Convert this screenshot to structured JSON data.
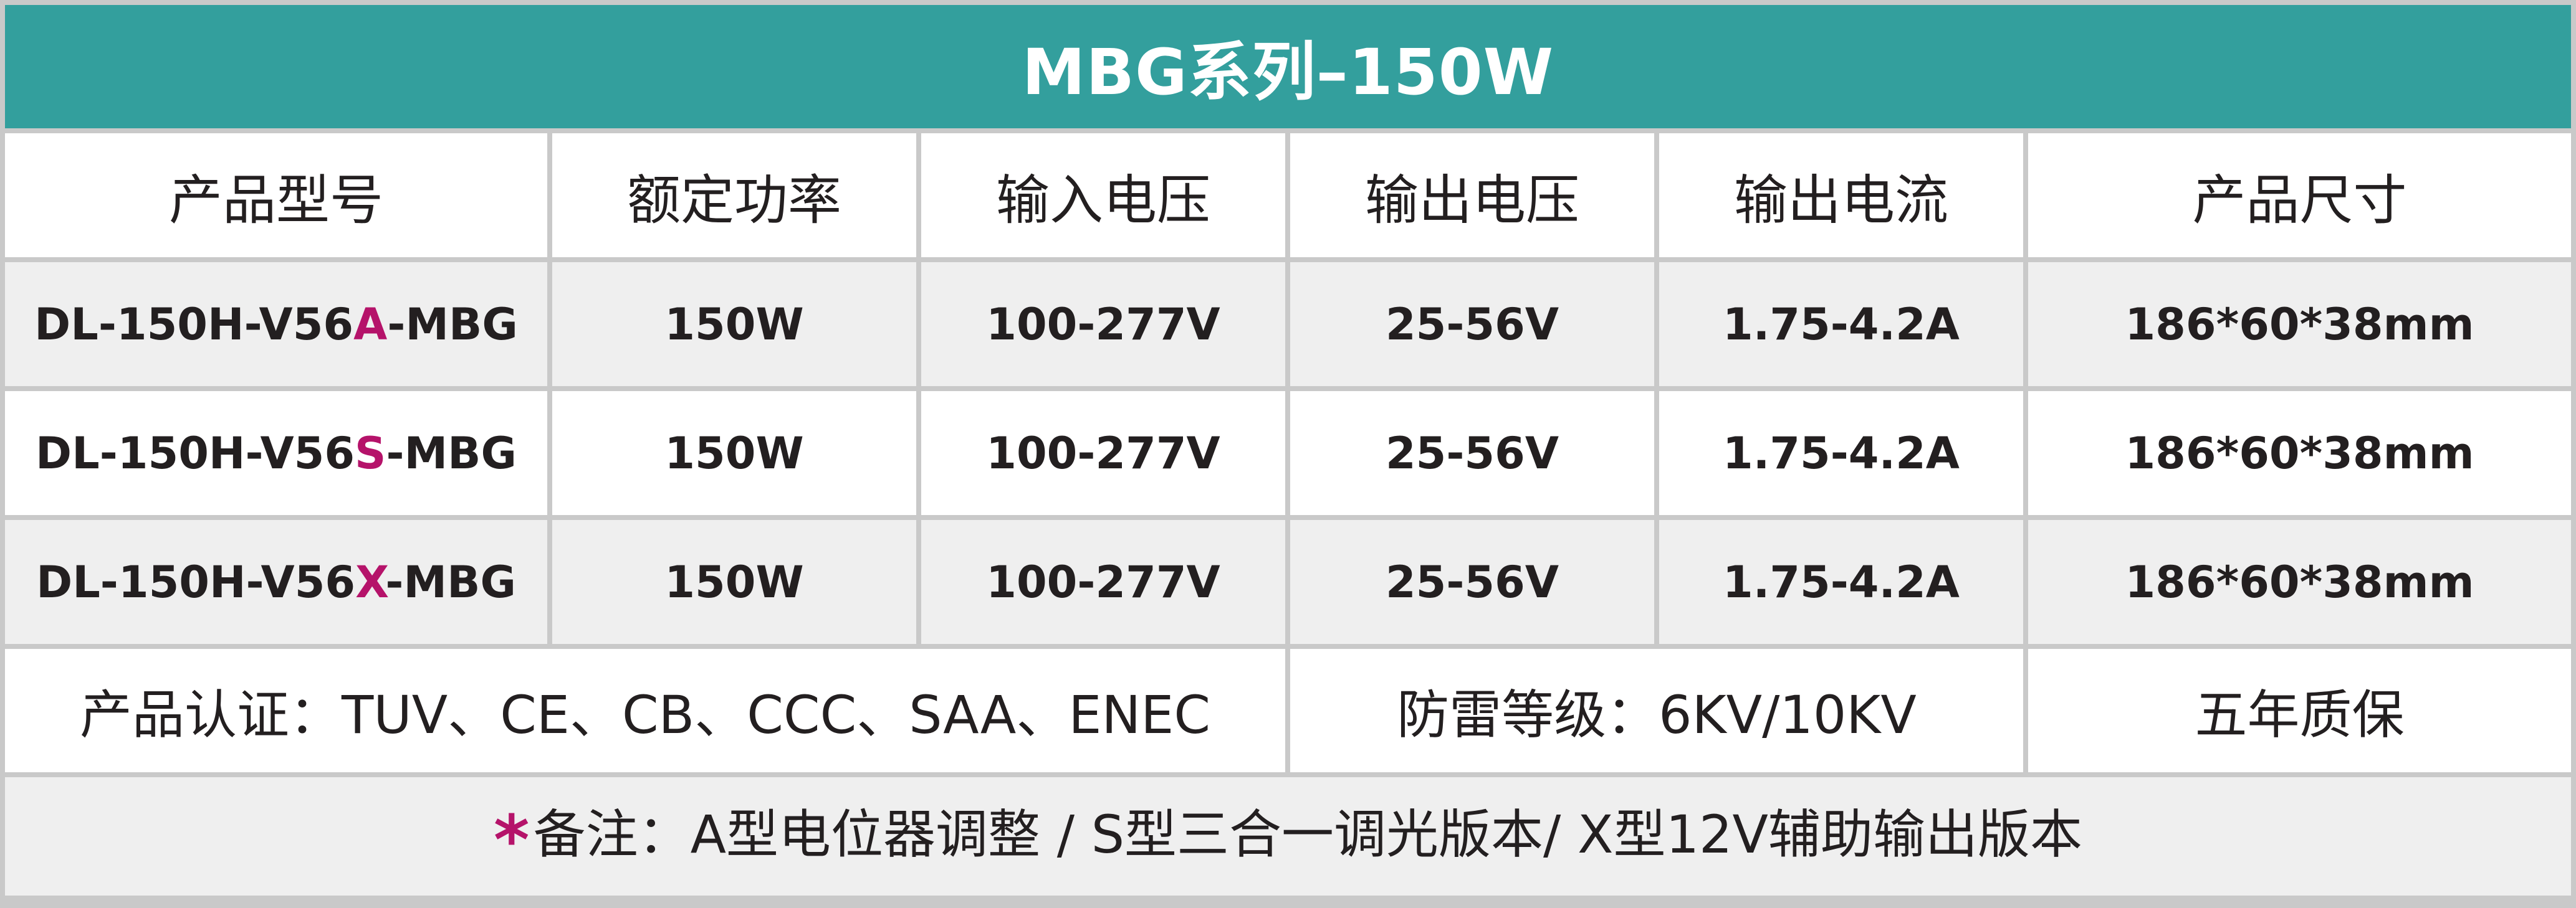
{
  "title": "MBG系列–150W",
  "header": [
    "产品型号",
    "额定功率",
    "输入电压",
    "输出电压",
    "输出电流",
    "产品尺寸"
  ],
  "rows": [
    {
      "model_prefix": "DL-150H-V56",
      "model_variant": "A",
      "model_suffix": "-MBG",
      "power": "150W",
      "input_voltage": "100-277V",
      "output_voltage": "25-56V",
      "output_current": "1.75-4.2A",
      "size": "186*60*38mm"
    },
    {
      "model_prefix": "DL-150H-V56",
      "model_variant": "S",
      "model_suffix": "-MBG",
      "power": "150W",
      "input_voltage": "100-277V",
      "output_voltage": "25-56V",
      "output_current": "1.75-4.2A",
      "size": "186*60*38mm"
    },
    {
      "model_prefix": "DL-150H-V56",
      "model_variant": "X",
      "model_suffix": "-MBG",
      "power": "150W",
      "input_voltage": "100-277V",
      "output_voltage": "25-56V",
      "output_current": "1.75-4.2A",
      "size": "186*60*38mm"
    }
  ],
  "info": {
    "certification": "产品认证：TUV、CE、CB、CCC、SAA、ENEC",
    "surge": "防雷等级：6KV/10KV",
    "warranty": "五年质保"
  },
  "note": {
    "star": "*",
    "text": "备注：A型电位器调整 / S型三合一调光版本/ X型12V辅助输出版本"
  },
  "colors": {
    "title_bg": "#339f9d",
    "accent": "#b5136a",
    "grid_line": "#c9c9c9",
    "row_alt": "#efefef"
  }
}
